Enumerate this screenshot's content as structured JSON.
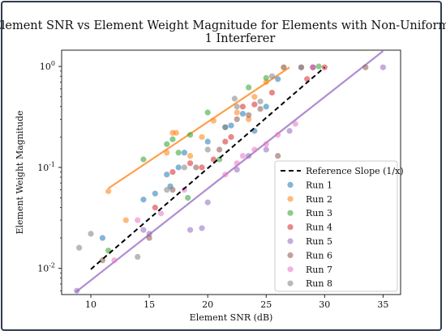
{
  "chart_data": {
    "type": "scatter",
    "title": "Element SNR vs Element Weight Magnitude for Elements with Non-Uniform Noise",
    "subtitle": "1 Interferer",
    "xlabel": "Element SNR (dB)",
    "ylabel": "Element Weight Magnitude",
    "xlim": [
      7.5,
      36.5
    ],
    "ylim": [
      0.0055,
      1.45
    ],
    "y_scale": "log",
    "grid": false,
    "legend_position": "lower-right",
    "x_ticks": [
      10,
      15,
      20,
      25,
      30,
      35
    ],
    "x_tick_labels": [
      "10",
      "15",
      "20",
      "25",
      "30",
      "35"
    ],
    "y_ticks": [
      0.01,
      0.1,
      1
    ],
    "y_tick_labels": [
      "10^-2",
      "10^-1",
      "10^0"
    ],
    "reference_line": {
      "name": "Reference Slope (1/x)",
      "color": "#000000",
      "points": [
        [
          10,
          0.0098
        ],
        [
          30,
          0.98
        ]
      ]
    },
    "fit_lines": [
      {
        "series": "Run 2",
        "color": "#ff7f0e",
        "points": [
          [
            11.5,
            0.062
          ],
          [
            27,
            0.98
          ]
        ]
      },
      {
        "series": "Run 5",
        "color": "#9467bd",
        "points": [
          [
            8.7,
            0.0058
          ],
          [
            35,
            1.42
          ]
        ]
      }
    ],
    "series": [
      {
        "name": "Run 1",
        "color": "#1f77b4",
        "points": [
          [
            11,
            0.02
          ],
          [
            14.5,
            0.048
          ],
          [
            15.5,
            0.055
          ],
          [
            16.5,
            0.085
          ],
          [
            18,
            0.14
          ],
          [
            17.5,
            0.1
          ],
          [
            20,
            0.18
          ],
          [
            21.5,
            0.25
          ],
          [
            22,
            0.26
          ],
          [
            23,
            0.34
          ],
          [
            24,
            0.23
          ],
          [
            25,
            0.4
          ],
          [
            26,
            0.75
          ],
          [
            16.8,
            0.065
          ]
        ]
      },
      {
        "name": "Run 2",
        "color": "#ff7f0e",
        "points": [
          [
            11.5,
            0.058
          ],
          [
            13,
            0.03
          ],
          [
            16.5,
            0.14
          ],
          [
            17,
            0.22
          ],
          [
            17.3,
            0.22
          ],
          [
            18.5,
            0.13
          ],
          [
            19.5,
            0.2
          ],
          [
            20.5,
            0.29
          ],
          [
            22.5,
            0.35
          ],
          [
            24,
            0.5
          ],
          [
            25,
            0.7
          ],
          [
            26.5,
            0.98
          ],
          [
            23.5,
            0.3
          ]
        ]
      },
      {
        "name": "Run 3",
        "color": "#2ca02c",
        "points": [
          [
            11.5,
            0.015
          ],
          [
            14.5,
            0.12
          ],
          [
            16.5,
            0.17
          ],
          [
            17,
            0.19
          ],
          [
            17.5,
            0.14
          ],
          [
            18.3,
            0.05
          ],
          [
            18.5,
            0.21
          ],
          [
            20,
            0.35
          ],
          [
            21,
            0.12
          ],
          [
            23.5,
            0.62
          ],
          [
            25,
            0.77
          ],
          [
            29.5,
            1.0
          ]
        ]
      },
      {
        "name": "Run 4",
        "color": "#d62728",
        "points": [
          [
            15.5,
            0.04
          ],
          [
            17,
            0.09
          ],
          [
            18.5,
            0.11
          ],
          [
            19.5,
            0.1
          ],
          [
            20.5,
            0.12
          ],
          [
            22,
            0.2
          ],
          [
            23,
            0.4
          ],
          [
            24,
            0.42
          ],
          [
            25.5,
            0.55
          ],
          [
            28.5,
            0.75
          ],
          [
            30,
            0.98
          ],
          [
            21.5,
            0.18
          ]
        ]
      },
      {
        "name": "Run 5",
        "color": "#9467bd",
        "points": [
          [
            8.8,
            0.006
          ],
          [
            14.5,
            0.024
          ],
          [
            15,
            0.022
          ],
          [
            18.5,
            0.024
          ],
          [
            19.5,
            0.025
          ],
          [
            20,
            0.045
          ],
          [
            22.5,
            0.095
          ],
          [
            23.5,
            0.13
          ],
          [
            25,
            0.15
          ],
          [
            27,
            0.23
          ],
          [
            29,
            0.98
          ],
          [
            35,
            0.98
          ]
        ]
      },
      {
        "name": "Run 6",
        "color": "#8c564b",
        "points": [
          [
            11,
            0.012
          ],
          [
            15,
            0.02
          ],
          [
            17,
            0.06
          ],
          [
            19,
            0.1
          ],
          [
            21,
            0.15
          ],
          [
            22.5,
            0.3
          ],
          [
            23.5,
            0.33
          ],
          [
            24.5,
            0.38
          ],
          [
            26,
            0.13
          ],
          [
            28,
            0.98
          ],
          [
            29,
            0.98
          ],
          [
            33.5,
            0.98
          ]
        ]
      },
      {
        "name": "Run 7",
        "color": "#e377c2",
        "points": [
          [
            12,
            0.012
          ],
          [
            14,
            0.03
          ],
          [
            16,
            0.035
          ],
          [
            18,
            0.06
          ],
          [
            21.5,
            0.085
          ],
          [
            22.5,
            0.11
          ],
          [
            24,
            0.15
          ],
          [
            25,
            0.17
          ],
          [
            26,
            0.21
          ],
          [
            27.5,
            0.27
          ],
          [
            29,
            0.98
          ],
          [
            23,
            0.13
          ]
        ]
      },
      {
        "name": "Run 8",
        "color": "#7f7f7f",
        "points": [
          [
            9,
            0.016
          ],
          [
            10,
            0.022
          ],
          [
            14,
            0.013
          ],
          [
            16.5,
            0.06
          ],
          [
            18,
            0.1
          ],
          [
            20,
            0.15
          ],
          [
            21.5,
            0.25
          ],
          [
            22.5,
            0.4
          ],
          [
            24.5,
            0.45
          ],
          [
            25.5,
            0.8
          ],
          [
            26.5,
            0.98
          ],
          [
            28,
            0.98
          ],
          [
            22.3,
            0.48
          ]
        ]
      }
    ]
  }
}
